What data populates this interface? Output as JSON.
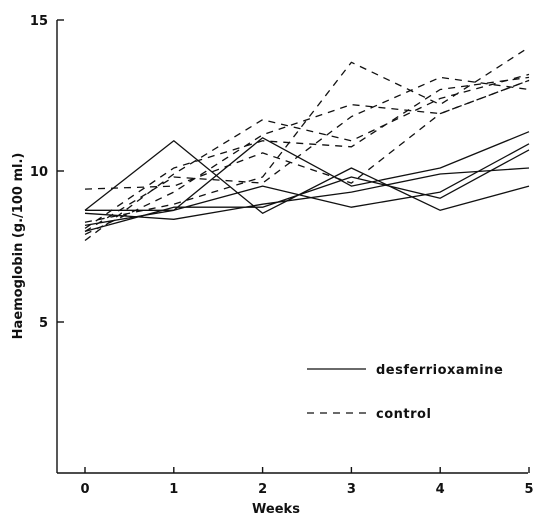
{
  "chart_data": {
    "type": "line",
    "xlabel": "Weeks",
    "ylabel": "Haemoglobin (g./100 ml.)",
    "xlim": [
      0,
      5
    ],
    "ylim": [
      0,
      15
    ],
    "x_ticks": [
      "0",
      "1",
      "2",
      "3",
      "4",
      "5"
    ],
    "y_ticks": [
      "5",
      "10",
      "15"
    ],
    "grid": false,
    "legend_position": "bottom-right",
    "legend": [
      {
        "label": "desferrioxamine",
        "style": "solid"
      },
      {
        "label": "control",
        "style": "dashed"
      }
    ],
    "x": [
      0,
      1,
      2,
      3,
      4,
      5
    ],
    "series": [
      {
        "group": "desferrioxamine",
        "style": "solid",
        "values": [
          8.7,
          11.0,
          8.6,
          10.1,
          8.7,
          9.5
        ]
      },
      {
        "group": "desferrioxamine",
        "style": "solid",
        "values": [
          8.7,
          8.7,
          11.1,
          9.5,
          10.1,
          11.3
        ]
      },
      {
        "group": "desferrioxamine",
        "style": "solid",
        "values": [
          8.2,
          8.7,
          9.5,
          8.8,
          9.3,
          10.9
        ]
      },
      {
        "group": "desferrioxamine",
        "style": "solid",
        "values": [
          8.0,
          8.8,
          8.8,
          9.8,
          9.1,
          10.7
        ]
      },
      {
        "group": "desferrioxamine",
        "style": "solid",
        "values": [
          8.6,
          8.4,
          8.9,
          9.3,
          9.9,
          10.1
        ]
      },
      {
        "group": "control",
        "style": "dashed",
        "values": [
          7.7,
          9.9,
          11.7,
          11.0,
          12.4,
          13.2
        ]
      },
      {
        "group": "control",
        "style": "dashed",
        "values": [
          8.0,
          9.8,
          9.6,
          11.8,
          13.1,
          12.7
        ]
      },
      {
        "group": "control",
        "style": "dashed",
        "values": [
          8.3,
          8.9,
          9.8,
          13.6,
          12.2,
          14.1
        ]
      },
      {
        "group": "control",
        "style": "dashed",
        "values": [
          9.4,
          9.5,
          10.6,
          9.6,
          11.9,
          13.0
        ]
      },
      {
        "group": "control",
        "style": "dashed",
        "values": [
          7.9,
          9.3,
          11.2,
          12.2,
          11.9,
          13.0
        ]
      },
      {
        "group": "control",
        "style": "dashed",
        "values": [
          8.1,
          10.1,
          11.0,
          10.8,
          12.7,
          13.1
        ]
      }
    ],
    "colors": {
      "line": "#111111",
      "axis": "#111111",
      "background": "#ffffff"
    }
  }
}
